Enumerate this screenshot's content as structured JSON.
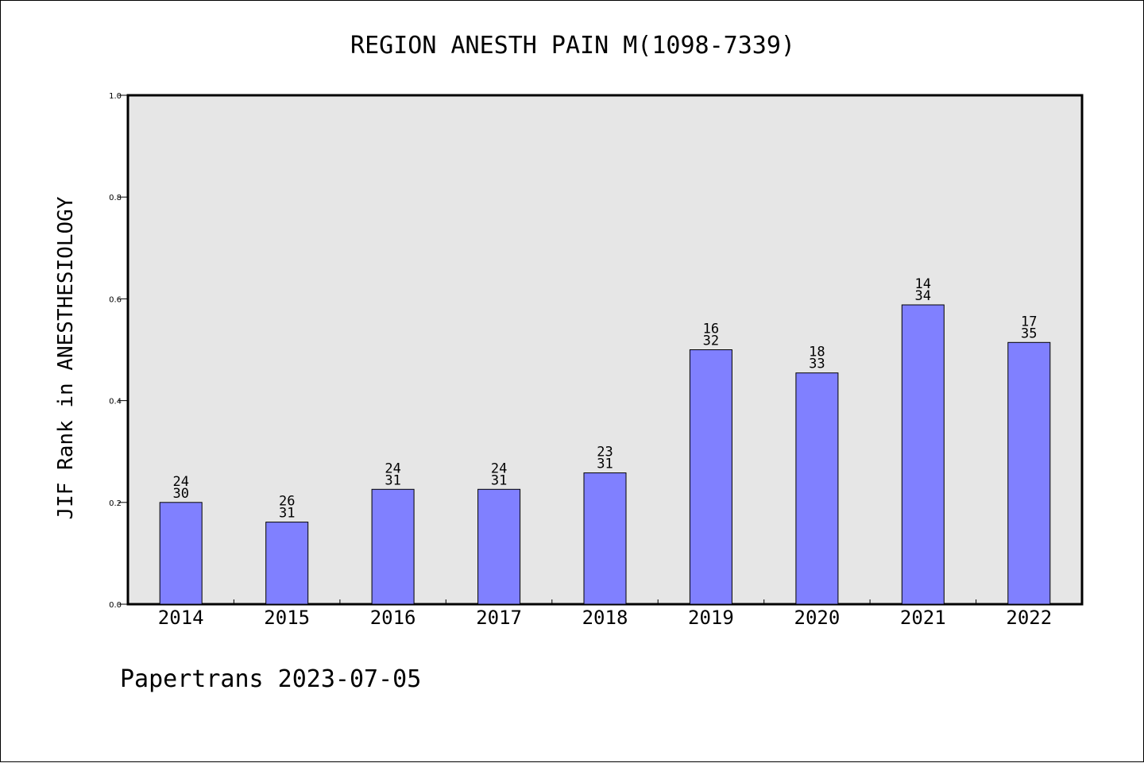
{
  "footer": {
    "text": "Papertrans 2023-07-05"
  },
  "chart_data": {
    "type": "bar",
    "title": "REGION ANESTH PAIN M(1098-7339)",
    "xlabel": "",
    "ylabel": "JIF Rank in ANESTHESIOLOGY",
    "ylim": [
      0,
      1.0
    ],
    "yticks": [
      "0.0",
      "0.2",
      "0.4",
      "0.6",
      "0.8",
      "1.0"
    ],
    "grid": false,
    "categories": [
      "2014",
      "2015",
      "2016",
      "2017",
      "2018",
      "2019",
      "2020",
      "2021",
      "2022"
    ],
    "values": [
      0.2,
      0.1613,
      0.2258,
      0.2258,
      0.2581,
      0.5,
      0.4545,
      0.5882,
      0.5143
    ],
    "labels_top": [
      "24",
      "26",
      "24",
      "24",
      "23",
      "16",
      "18",
      "14",
      "17"
    ],
    "labels_bottom": [
      "30",
      "31",
      "31",
      "31",
      "31",
      "32",
      "33",
      "34",
      "35"
    ],
    "colors": {
      "bar": "#8080ff",
      "plot_bg": "#e6e6e6",
      "axis": "#000000"
    }
  }
}
